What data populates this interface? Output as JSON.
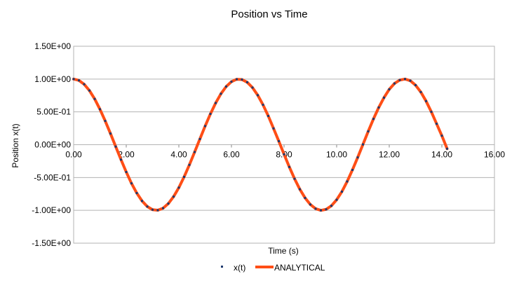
{
  "chart_data": {
    "type": "line",
    "title": "Position vs Time",
    "xlabel": "Time (s)",
    "ylabel": "Position x(t)",
    "xlim": [
      0,
      16
    ],
    "ylim": [
      -1.5,
      1.5
    ],
    "x_ticks": [
      0,
      2,
      4,
      6,
      8,
      10,
      12,
      14,
      16
    ],
    "x_tick_labels": [
      "0.00",
      "2.00",
      "4.00",
      "6.00",
      "8.00",
      "10.00",
      "12.00",
      "14.00",
      "16.00"
    ],
    "y_ticks": [
      1.5,
      1.0,
      0.5,
      0.0,
      -0.5,
      -1.0,
      -1.5
    ],
    "y_tick_labels": [
      "1.50E+00",
      "1.00E+00",
      "5.00E-01",
      "0.00E+00",
      "-5.00E-01",
      "-1.00E+00",
      "-1.50E+00"
    ],
    "grid": true,
    "legend_position": "bottom",
    "series": [
      {
        "name": "x(t)",
        "style": "markers",
        "color": "#1f3a6e",
        "x": [
          0.0,
          0.2,
          0.4,
          0.6,
          0.8,
          1.0,
          1.2,
          1.4,
          1.6,
          1.8,
          2.0,
          2.2,
          2.4,
          2.6,
          2.8,
          3.0,
          3.2,
          3.4,
          3.6,
          3.8,
          4.0,
          4.2,
          4.4,
          4.6,
          4.8,
          5.0,
          5.2,
          5.4,
          5.6,
          5.8,
          6.0,
          6.2,
          6.4,
          6.6,
          6.8,
          7.0,
          7.2,
          7.4,
          7.6,
          7.8,
          8.0,
          8.2,
          8.4,
          8.6,
          8.8,
          9.0,
          9.2,
          9.4,
          9.6,
          9.8,
          10.0,
          10.2,
          10.4,
          10.6,
          10.8,
          11.0,
          11.2,
          11.4,
          11.6,
          11.8,
          12.0,
          12.2,
          12.4,
          12.6,
          12.8,
          13.0,
          13.2,
          13.4,
          13.6,
          13.8,
          14.0,
          14.2
        ],
        "y": [
          1.0,
          0.98,
          0.921,
          0.825,
          0.697,
          0.54,
          0.362,
          0.17,
          -0.029,
          -0.227,
          -0.416,
          -0.589,
          -0.737,
          -0.857,
          -0.942,
          -0.99,
          -0.998,
          -0.967,
          -0.897,
          -0.791,
          -0.654,
          -0.49,
          -0.307,
          -0.112,
          0.087,
          0.284,
          0.469,
          0.635,
          0.776,
          0.886,
          0.96,
          0.997,
          0.993,
          0.951,
          0.87,
          0.754,
          0.608,
          0.438,
          0.248,
          0.054,
          -0.146,
          -0.339,
          -0.519,
          -0.679,
          -0.811,
          -0.911,
          -0.975,
          -1.0,
          -0.985,
          -0.931,
          -0.839,
          -0.715,
          -0.56,
          -0.384,
          -0.194,
          0.004,
          0.203,
          0.393,
          0.567,
          0.717,
          0.844,
          0.933,
          0.985,
          1.0,
          0.975,
          0.907,
          0.802,
          0.664,
          0.501,
          0.319,
          0.137,
          -0.061
        ]
      },
      {
        "name": "ANALYTICAL",
        "style": "line",
        "color": "#ff4e16",
        "x": [
          0.0,
          0.2,
          0.4,
          0.6,
          0.8,
          1.0,
          1.2,
          1.4,
          1.6,
          1.8,
          2.0,
          2.2,
          2.4,
          2.6,
          2.8,
          3.0,
          3.2,
          3.4,
          3.6,
          3.8,
          4.0,
          4.2,
          4.4,
          4.6,
          4.8,
          5.0,
          5.2,
          5.4,
          5.6,
          5.8,
          6.0,
          6.2,
          6.4,
          6.6,
          6.8,
          7.0,
          7.2,
          7.4,
          7.6,
          7.8,
          8.0,
          8.2,
          8.4,
          8.6,
          8.8,
          9.0,
          9.2,
          9.4,
          9.6,
          9.8,
          10.0,
          10.2,
          10.4,
          10.6,
          10.8,
          11.0,
          11.2,
          11.4,
          11.6,
          11.8,
          12.0,
          12.2,
          12.4,
          12.6,
          12.8,
          13.0,
          13.2,
          13.4,
          13.6,
          13.8,
          14.0,
          14.2
        ],
        "y": [
          1.0,
          0.98,
          0.921,
          0.825,
          0.697,
          0.54,
          0.362,
          0.17,
          -0.029,
          -0.227,
          -0.416,
          -0.589,
          -0.737,
          -0.857,
          -0.942,
          -0.99,
          -0.998,
          -0.967,
          -0.897,
          -0.791,
          -0.654,
          -0.49,
          -0.307,
          -0.112,
          0.087,
          0.284,
          0.469,
          0.635,
          0.776,
          0.886,
          0.96,
          0.997,
          0.993,
          0.951,
          0.87,
          0.754,
          0.608,
          0.438,
          0.248,
          0.054,
          -0.146,
          -0.339,
          -0.519,
          -0.679,
          -0.811,
          -0.911,
          -0.975,
          -1.0,
          -0.985,
          -0.931,
          -0.839,
          -0.715,
          -0.56,
          -0.384,
          -0.194,
          0.004,
          0.203,
          0.393,
          0.567,
          0.717,
          0.844,
          0.933,
          0.985,
          1.0,
          0.975,
          0.907,
          0.802,
          0.664,
          0.501,
          0.319,
          0.137,
          -0.061
        ]
      }
    ]
  },
  "colors": {
    "grid": "#b3b3b3",
    "plot_border": "#b3b3b3",
    "text": "#000000"
  }
}
